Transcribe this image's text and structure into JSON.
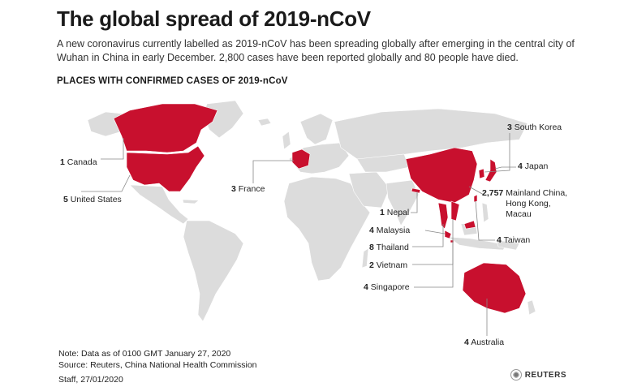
{
  "header": {
    "title": "The global spread of 2019-nCoV",
    "subtitle": "A new coronavirus currently labelled as 2019-nCoV has been spreading globally after emerging in the central city of Wuhan in China in early December. 2,800 cases have been reported globally and 80 people have died.",
    "section_title": "PLACES WITH CONFIRMED CASES OF 2019-nCoV"
  },
  "map_colors": {
    "land": "#dcdcdc",
    "affected": "#c8102e",
    "border": "#ffffff",
    "leader": "#888888"
  },
  "labels": {
    "canada": {
      "count": "1",
      "name": "Canada"
    },
    "united_states": {
      "count": "5",
      "name": "United States"
    },
    "france": {
      "count": "3",
      "name": "France"
    },
    "south_korea": {
      "count": "3",
      "name": "South Korea"
    },
    "japan": {
      "count": "4",
      "name": "Japan"
    },
    "china": {
      "count": "2,757",
      "name": "Mainland China, Hong Kong, Macau"
    },
    "nepal": {
      "count": "1",
      "name": "Nepal"
    },
    "malaysia": {
      "count": "4",
      "name": "Malaysia"
    },
    "thailand": {
      "count": "8",
      "name": "Thailand"
    },
    "vietnam": {
      "count": "2",
      "name": "Vietnam"
    },
    "singapore": {
      "count": "4",
      "name": "Singapore"
    },
    "taiwan": {
      "count": "4",
      "name": "Taiwan"
    },
    "australia": {
      "count": "4",
      "name": "Australia"
    }
  },
  "footer": {
    "note": "Note: Data as of 0100 GMT January 27, 2020",
    "source": "Source: Reuters, China National Health Commission",
    "credit": "Staff,  27/01/2020",
    "brand": "REUTERS"
  }
}
